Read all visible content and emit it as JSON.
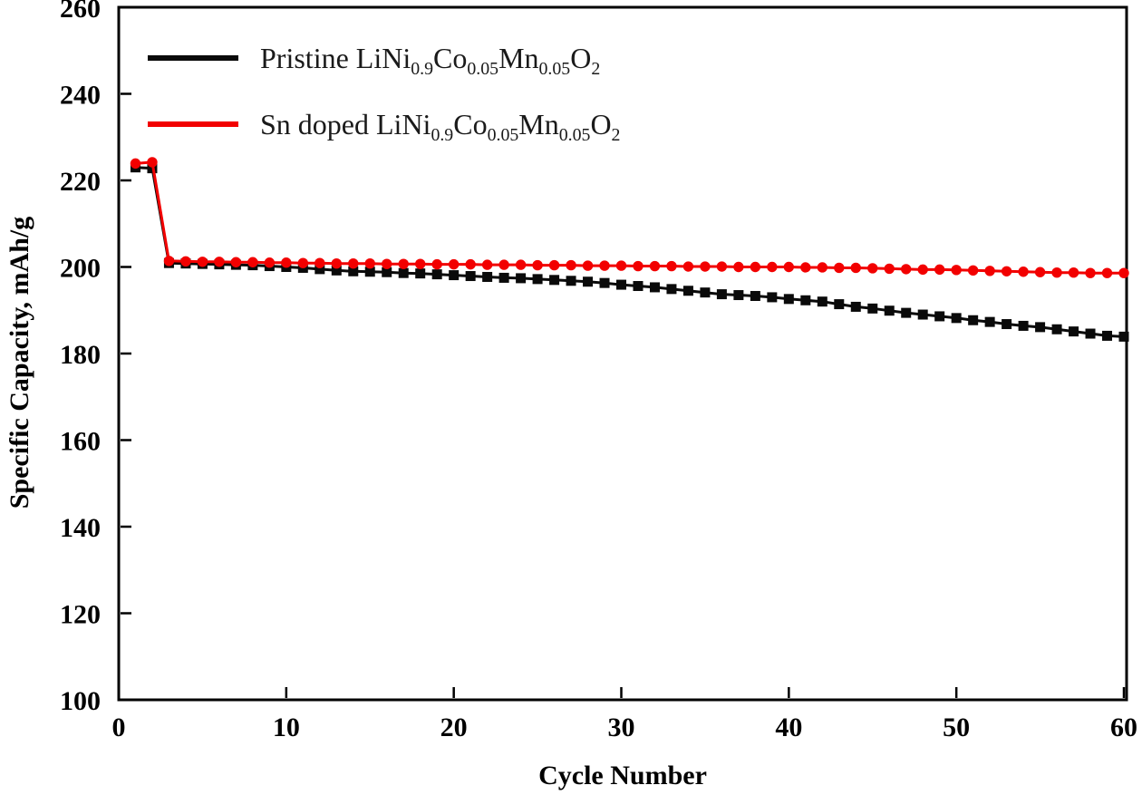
{
  "chart_data": {
    "type": "line",
    "title": "",
    "xlabel": "Cycle Number",
    "ylabel": "Specific Capacity, mAh/g",
    "xlim": [
      0,
      60
    ],
    "ylim": [
      100,
      260
    ],
    "xticks": [
      0,
      10,
      20,
      30,
      40,
      50,
      60
    ],
    "yticks": [
      100,
      120,
      140,
      160,
      180,
      200,
      220,
      240,
      260
    ],
    "grid": false,
    "legend_position": "top-left-inside",
    "axis_color": "#000000",
    "background": "#ffffff",
    "x": [
      1,
      2,
      3,
      4,
      5,
      6,
      7,
      8,
      9,
      10,
      11,
      12,
      13,
      14,
      15,
      16,
      17,
      18,
      19,
      20,
      21,
      22,
      23,
      24,
      25,
      26,
      27,
      28,
      29,
      30,
      31,
      32,
      33,
      34,
      35,
      36,
      37,
      38,
      39,
      40,
      41,
      42,
      43,
      44,
      45,
      46,
      47,
      48,
      49,
      50,
      51,
      52,
      53,
      54,
      55,
      56,
      57,
      58,
      59,
      60
    ],
    "series": [
      {
        "name": "Pristine LiNi0.9Co0.05Mn0.05O2",
        "label_parts": [
          [
            "t",
            "Pristine LiNi"
          ],
          [
            "s",
            "0.9"
          ],
          [
            "t",
            "Co"
          ],
          [
            "s",
            "0.05"
          ],
          [
            "t",
            "Mn"
          ],
          [
            "s",
            "0.05"
          ],
          [
            "t",
            "O"
          ],
          [
            "s",
            "2"
          ]
        ],
        "color": "#0a0a0a",
        "marker": "square",
        "marker_size": 11,
        "line_width": 3,
        "values": [
          223.0,
          222.8,
          200.9,
          200.8,
          200.7,
          200.6,
          200.5,
          200.4,
          200.2,
          200.0,
          199.8,
          199.5,
          199.2,
          199.0,
          198.9,
          198.8,
          198.6,
          198.5,
          198.3,
          198.1,
          197.9,
          197.7,
          197.5,
          197.4,
          197.2,
          197.0,
          196.8,
          196.6,
          196.3,
          195.9,
          195.6,
          195.3,
          194.9,
          194.5,
          194.1,
          193.7,
          193.5,
          193.3,
          193.0,
          192.6,
          192.3,
          192.0,
          191.4,
          190.8,
          190.4,
          189.9,
          189.4,
          189.0,
          188.6,
          188.2,
          187.7,
          187.3,
          186.8,
          186.4,
          186.1,
          185.6,
          185.1,
          184.6,
          184.1,
          183.9
        ]
      },
      {
        "name": "Sn doped LiNi0.9Co0.05Mn0.05O2",
        "label_parts": [
          [
            "t",
            "Sn doped LiNi"
          ],
          [
            "s",
            "0.9"
          ],
          [
            "t",
            "Co"
          ],
          [
            "s",
            "0.05"
          ],
          [
            "t",
            "Mn"
          ],
          [
            "s",
            "0.05"
          ],
          [
            "t",
            "O"
          ],
          [
            "s",
            "2"
          ]
        ],
        "color": "#f20000",
        "marker": "circle",
        "marker_size": 11,
        "line_width": 3,
        "values": [
          223.9,
          224.2,
          201.4,
          201.3,
          201.2,
          201.2,
          201.1,
          201.1,
          201.0,
          201.0,
          200.9,
          200.9,
          200.8,
          200.8,
          200.8,
          200.7,
          200.7,
          200.7,
          200.6,
          200.6,
          200.6,
          200.5,
          200.5,
          200.5,
          200.4,
          200.4,
          200.4,
          200.3,
          200.3,
          200.3,
          200.2,
          200.2,
          200.2,
          200.1,
          200.1,
          200.1,
          200.0,
          200.0,
          200.0,
          200.0,
          199.9,
          199.9,
          199.8,
          199.8,
          199.7,
          199.6,
          199.5,
          199.4,
          199.4,
          199.3,
          199.2,
          199.1,
          199.0,
          198.9,
          198.8,
          198.7,
          198.7,
          198.6,
          198.6,
          198.6
        ]
      }
    ]
  }
}
